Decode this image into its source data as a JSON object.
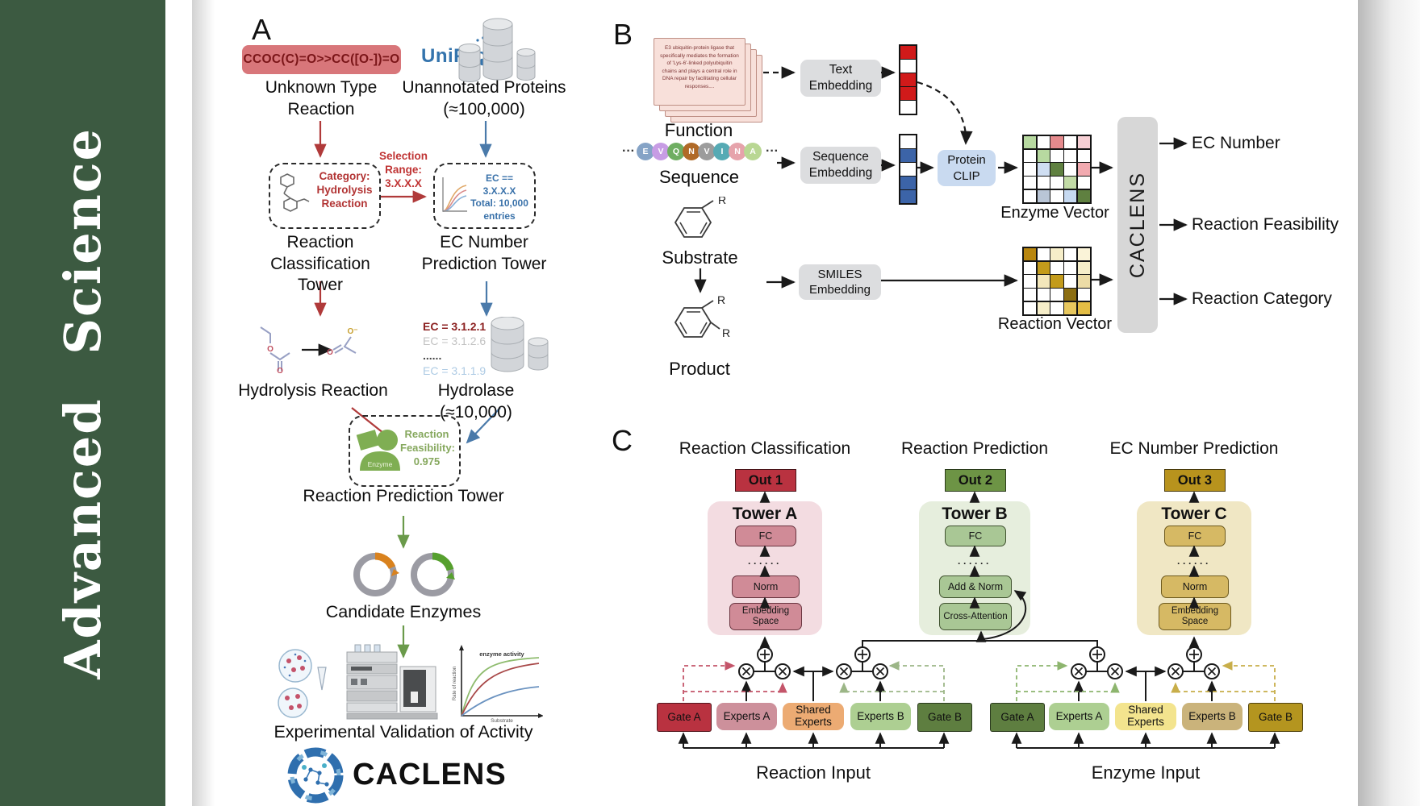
{
  "journal": {
    "name": "Advanced Science"
  },
  "colors": {
    "sidebar_green": "#3c5a41",
    "smiles_red_box": "#d8767a",
    "uniprot_blue": "#3474ad",
    "out1_red": "#b93240",
    "out2_green": "#6d9445",
    "out3_gold": "#b8931d"
  },
  "panelA": {
    "label": "A",
    "smiles": "CCOC(C)=O>>CC([O-])=O",
    "unknown_reaction": "Unknown Type Reaction",
    "uniprot_logo": "UniProt",
    "unannotated_proteins": "Unannotated Proteins (≈100,000)",
    "selection_range_lines": [
      "Selection",
      "Range:",
      "3.X.X.X"
    ],
    "category_lines": [
      "Category:",
      "Hydrolysis",
      "Reaction"
    ],
    "ec_filter_lines": [
      "EC == 3.X.X.X",
      "Total: 10,000",
      "entries"
    ],
    "classification_tower": "Reaction Classification Tower",
    "ec_prediction_tower": "EC Number Prediction Tower",
    "hydrolysis_reaction": "Hydrolysis Reaction",
    "ec_list": [
      "EC = 3.1.2.1",
      "EC = 3.1.2.6",
      "......",
      "EC = 3.1.1.9"
    ],
    "hydrolase": "Hydrolase (≈10,000)",
    "enzyme_label": "Enzyme",
    "feasibility_lines": [
      "Reaction",
      "Feasibility:",
      "0.975"
    ],
    "reaction_prediction_tower": "Reaction Prediction Tower",
    "candidate_enzymes": "Candidate Enzymes",
    "validation_caption": "Experimental Validation of Activity",
    "activity_plot": {
      "ylabel": "Rate of reaction",
      "xlabel": "Substrate",
      "annotation": "enzyme activity"
    },
    "brand": "CACLENS"
  },
  "panelB": {
    "label": "B",
    "function_card_text": "E3 ubiquitin-protein ligase that specifically mediates the formation of 'Lys-6'-linked polyubiquitin chains and plays a central role in DNA repair by facilitating cellular responses....",
    "function_label": "Function",
    "ellipsis": "···",
    "sequence": [
      {
        "letter": "E",
        "color": "#85a3c6"
      },
      {
        "letter": "V",
        "color": "#c79ce4"
      },
      {
        "letter": "Q",
        "color": "#6fae62"
      },
      {
        "letter": "N",
        "color": "#b06a28"
      },
      {
        "letter": "V",
        "color": "#9c9c9c"
      },
      {
        "letter": "I",
        "color": "#56aab4"
      },
      {
        "letter": "N",
        "color": "#e6a3ab"
      },
      {
        "letter": "A",
        "color": "#b9d793"
      }
    ],
    "sequence_label": "Sequence",
    "substrate_label": "Substrate",
    "product_label": "Product",
    "r_group": "R",
    "text_embedding": "Text Embedding",
    "sequence_embedding": "Sequence Embedding",
    "smiles_embedding": "SMILES Embedding",
    "protein_clip": "Protein CLIP",
    "text_vector": [
      "#d11a1a",
      "#ffffff",
      "#d11a1a",
      "#d11a1a",
      "#ffffff"
    ],
    "seq_vector": [
      "#ffffff",
      "#3c64a8",
      "#ffffff",
      "#3c64a8",
      "#3c64a8"
    ],
    "enzyme_matrix": [
      "#b7d9a0",
      "#ffffff",
      "#e58a8d",
      "#ffffff",
      "#f6cfd4",
      "#ffffff",
      "#b7d9a0",
      "#ffffff",
      "#ffffff",
      "#ffffff",
      "#ffffff",
      "#cfdef2",
      "#5f8040",
      "#ffffff",
      "#f2aab0",
      "#ffffff",
      "#ffffff",
      "#ffffff",
      "#c2dba6",
      "#ffffff",
      "#ffffff",
      "#b9c5d6",
      "#ffffff",
      "#c6d9f0",
      "#5f8040"
    ],
    "reaction_matrix": [
      "#b8860f",
      "#ffffff",
      "#f6eec9",
      "#ffffff",
      "#faf3d8",
      "#ffffff",
      "#c39b1b",
      "#ffffff",
      "#ffffff",
      "#f6eec9",
      "#ffffff",
      "#f3e7bb",
      "#c39b1b",
      "#ffffff",
      "#ecdca6",
      "#ffffff",
      "#ffffff",
      "#ffffff",
      "#8c6e12",
      "#ffffff",
      "#ffffff",
      "#f6eec9",
      "#ffffff",
      "#e7c75e",
      "#e3bd45"
    ],
    "enzyme_vector_label": "Enzyme Vector",
    "reaction_vector_label": "Reaction Vector",
    "model_name": "CACLENS",
    "outputs": [
      "EC Number",
      "Reaction Feasibility",
      "Reaction Category"
    ]
  },
  "panelC": {
    "label": "C",
    "dots": "······",
    "towers": [
      {
        "title": "Reaction Classification",
        "out": "Out 1",
        "name": "Tower A",
        "top_box": "FC",
        "mid_box": "Norm",
        "bottom_box": "Embedding Space"
      },
      {
        "title": "Reaction Prediction",
        "out": "Out 2",
        "name": "Tower B",
        "top_box": "FC",
        "mid_box": "Add & Norm",
        "bottom_box": "Cross-Attention"
      },
      {
        "title": "EC Number Prediction",
        "out": "Out 3",
        "name": "Tower C",
        "top_box": "FC",
        "mid_box": "Norm",
        "bottom_box": "Embedding Space"
      }
    ],
    "moe": [
      {
        "gate_a": "Gate A",
        "experts_a": "Experts A",
        "shared": "Shared Experts",
        "experts_b": "Experts B",
        "gate_b": "Gate B",
        "input": "Reaction Input"
      },
      {
        "gate_a": "Gate A",
        "experts_a": "Experts A",
        "shared": "Shared Experts",
        "experts_b": "Experts B",
        "gate_b": "Gate B",
        "input": "Enzyme Input"
      }
    ]
  }
}
